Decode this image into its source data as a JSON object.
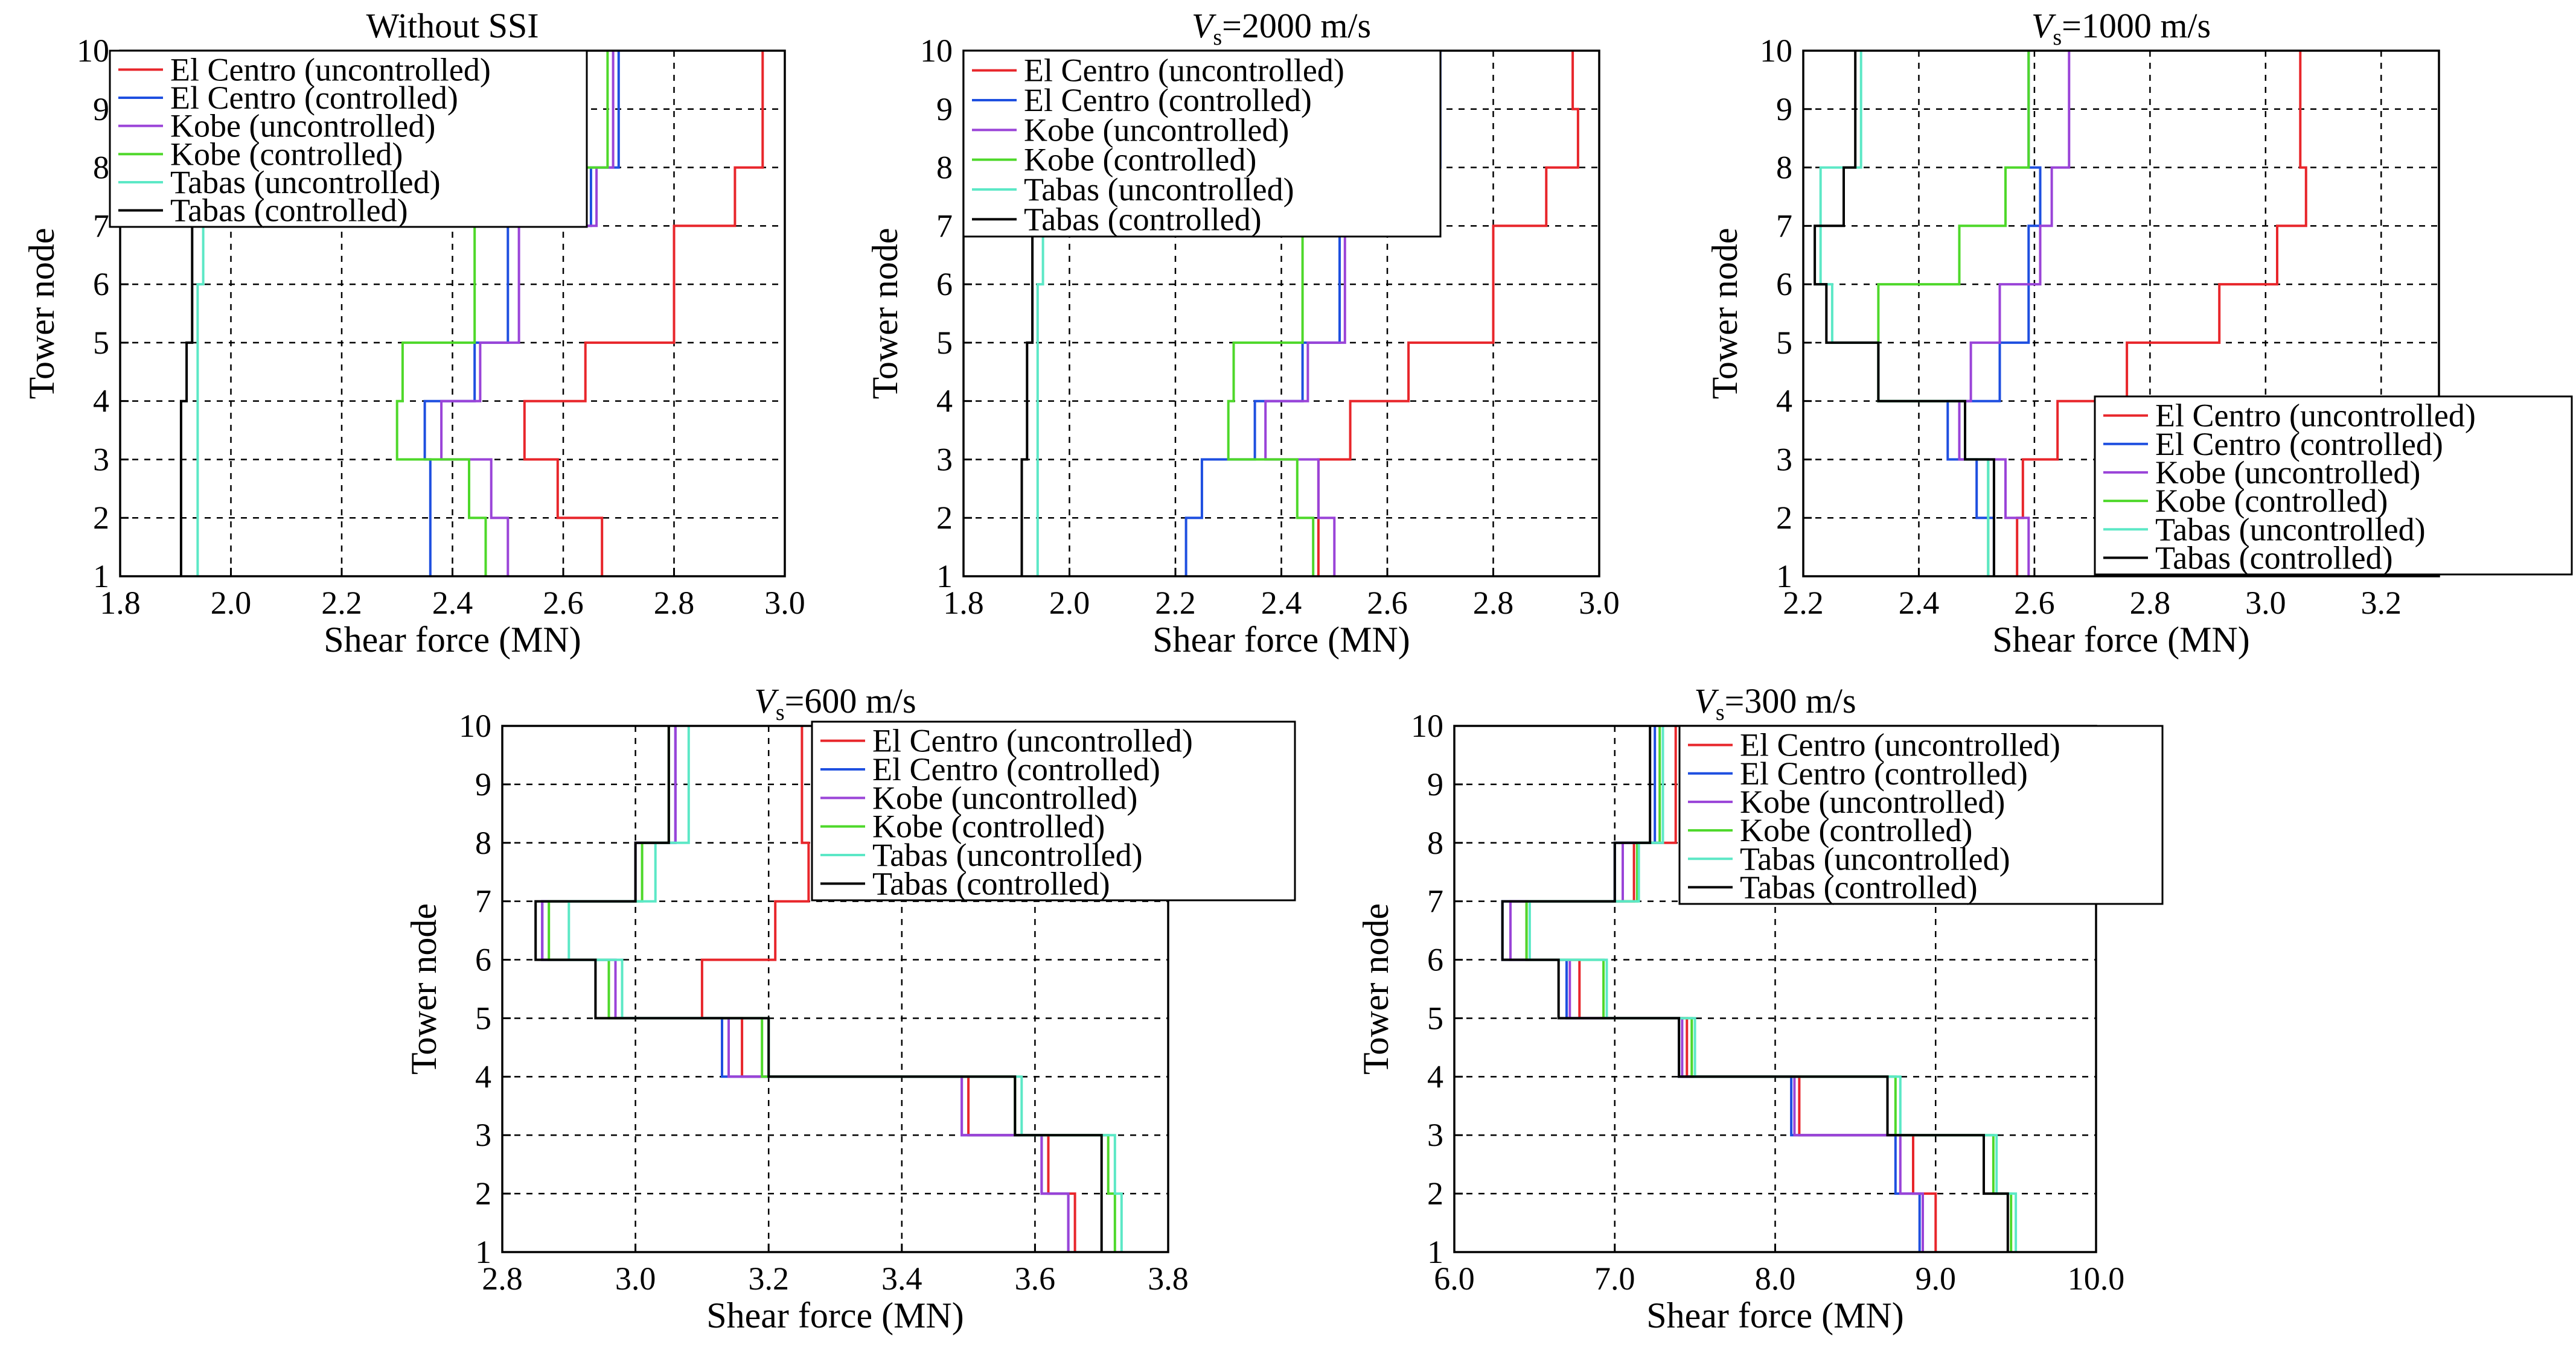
{
  "figure": {
    "series_names": [
      "El Centro (uncontrolled)",
      "El Centro (controlled)",
      "Kobe (uncontrolled)",
      "Kobe (controlled)",
      "Tabas (uncontrolled)",
      "Tabas (controlled)"
    ],
    "series_colors": [
      "#e8262b",
      "#1e4fe0",
      "#9a44d8",
      "#4ed82a",
      "#5ce8c6",
      "#000000"
    ]
  },
  "chart_data": [
    {
      "type": "line",
      "title": "Without SSI",
      "xlabel": "Shear force (MN)",
      "ylabel": "Tower node",
      "xlim": [
        1.8,
        3.0
      ],
      "ylim": [
        1,
        10
      ],
      "xticks": [
        "1.8",
        "2.0",
        "2.2",
        "2.4",
        "2.6",
        "2.8",
        "3.0"
      ],
      "yticks": [
        "1",
        "2",
        "3",
        "4",
        "5",
        "6",
        "7",
        "8",
        "9",
        "10"
      ],
      "grid": true,
      "legend": "top-left",
      "series": [
        {
          "name": "El Centro (uncontrolled)",
          "values": [
            2.67,
            2.59,
            2.53,
            2.64,
            2.8,
            2.8,
            2.91,
            2.96,
            2.96
          ]
        },
        {
          "name": "El Centro (controlled)",
          "values": [
            2.36,
            2.36,
            2.35,
            2.44,
            2.5,
            2.5,
            2.65,
            2.7,
            2.7
          ]
        },
        {
          "name": "Kobe (uncontrolled)",
          "values": [
            2.5,
            2.47,
            2.38,
            2.45,
            2.52,
            2.52,
            2.66,
            2.69,
            2.69
          ]
        },
        {
          "name": "Kobe (controlled)",
          "values": [
            2.46,
            2.43,
            2.3,
            2.31,
            2.44,
            2.44,
            2.62,
            2.68,
            2.68
          ]
        },
        {
          "name": "Tabas (uncontrolled)",
          "values": [
            1.94,
            1.94,
            1.94,
            1.94,
            1.94,
            1.95,
            1.95,
            1.96,
            1.96
          ]
        },
        {
          "name": "Tabas (controlled)",
          "values": [
            1.91,
            1.91,
            1.91,
            1.92,
            1.93,
            1.93,
            1.95,
            1.96,
            1.96
          ]
        }
      ]
    },
    {
      "type": "line",
      "title": "Vs=2000 m/s",
      "xlabel": "Shear force (MN)",
      "ylabel": "Tower node",
      "xlim": [
        1.8,
        3.0
      ],
      "ylim": [
        1,
        10
      ],
      "xticks": [
        "1.8",
        "2.0",
        "2.2",
        "2.4",
        "2.6",
        "2.8",
        "3.0"
      ],
      "yticks": [
        "1",
        "2",
        "3",
        "4",
        "5",
        "6",
        "7",
        "8",
        "9",
        "10"
      ],
      "grid": true,
      "legend": "top-left",
      "series": [
        {
          "name": "El Centro (uncontrolled)",
          "values": [
            2.47,
            2.47,
            2.53,
            2.64,
            2.8,
            2.8,
            2.9,
            2.96,
            2.95
          ]
        },
        {
          "name": "El Centro (controlled)",
          "values": [
            2.22,
            2.25,
            2.35,
            2.44,
            2.51,
            2.51,
            2.65,
            2.7,
            2.7
          ]
        },
        {
          "name": "Kobe (uncontrolled)",
          "values": [
            2.5,
            2.47,
            2.37,
            2.45,
            2.52,
            2.52,
            2.66,
            2.69,
            2.69
          ]
        },
        {
          "name": "Kobe (controlled)",
          "values": [
            2.46,
            2.43,
            2.3,
            2.31,
            2.44,
            2.44,
            2.62,
            2.68,
            2.68
          ]
        },
        {
          "name": "Tabas (uncontrolled)",
          "values": [
            1.94,
            1.94,
            1.94,
            1.94,
            1.94,
            1.95,
            1.95,
            1.96,
            1.96
          ]
        },
        {
          "name": "Tabas (controlled)",
          "values": [
            1.91,
            1.91,
            1.92,
            1.92,
            1.93,
            1.93,
            1.95,
            1.96,
            1.96
          ]
        }
      ]
    },
    {
      "type": "line",
      "title": "Vs=1000 m/s",
      "xlabel": "Shear force (MN)",
      "ylabel": "Tower node",
      "xlim": [
        2.2,
        3.3
      ],
      "ylim": [
        1,
        10
      ],
      "xticks": [
        "2.2",
        "2.4",
        "2.6",
        "2.8",
        "3.0",
        "3.2"
      ],
      "yticks": [
        "1",
        "2",
        "3",
        "4",
        "5",
        "6",
        "7",
        "8",
        "9",
        "10"
      ],
      "grid": true,
      "legend": "bottom-right",
      "series": [
        {
          "name": "El Centro (uncontrolled)",
          "values": [
            2.57,
            2.58,
            2.64,
            2.76,
            2.92,
            3.02,
            3.07,
            3.06,
            3.06
          ]
        },
        {
          "name": "El Centro (controlled)",
          "values": [
            2.53,
            2.5,
            2.45,
            2.54,
            2.59,
            2.59,
            2.61,
            2.59,
            2.59
          ]
        },
        {
          "name": "Kobe (uncontrolled)",
          "values": [
            2.59,
            2.55,
            2.47,
            2.49,
            2.54,
            2.61,
            2.63,
            2.66,
            2.66
          ]
        },
        {
          "name": "Kobe (controlled)",
          "values": [
            2.52,
            2.52,
            2.48,
            2.33,
            2.33,
            2.47,
            2.55,
            2.59,
            2.59
          ]
        },
        {
          "name": "Tabas (uncontrolled)",
          "values": [
            2.52,
            2.52,
            2.48,
            2.33,
            2.25,
            2.23,
            2.23,
            2.3,
            2.3
          ]
        },
        {
          "name": "Tabas (controlled)",
          "values": [
            2.53,
            2.53,
            2.48,
            2.33,
            2.24,
            2.22,
            2.27,
            2.29,
            2.29
          ]
        }
      ]
    },
    {
      "type": "line",
      "title": "Vs=600 m/s",
      "xlabel": "Shear force (MN)",
      "ylabel": "Tower node",
      "xlim": [
        2.8,
        3.8
      ],
      "ylim": [
        1,
        10
      ],
      "xticks": [
        "2.8",
        "3.0",
        "3.2",
        "3.4",
        "3.6",
        "3.8"
      ],
      "yticks": [
        "1",
        "2",
        "3",
        "4",
        "5",
        "6",
        "7",
        "8",
        "9",
        "10"
      ],
      "grid": true,
      "legend": "top-right",
      "series": [
        {
          "name": "El Centro (uncontrolled)",
          "values": [
            3.66,
            3.62,
            3.5,
            3.16,
            3.1,
            3.21,
            3.26,
            3.25,
            3.25
          ]
        },
        {
          "name": "El Centro (controlled)",
          "values": [
            3.65,
            3.61,
            3.49,
            3.13,
            2.97,
            2.86,
            3.0,
            3.06,
            3.06
          ]
        },
        {
          "name": "Kobe (uncontrolled)",
          "values": [
            3.65,
            3.61,
            3.49,
            3.14,
            2.97,
            2.86,
            3.0,
            3.06,
            3.06
          ]
        },
        {
          "name": "Kobe (controlled)",
          "values": [
            3.72,
            3.71,
            3.57,
            3.19,
            2.96,
            2.87,
            3.01,
            3.05,
            3.05
          ]
        },
        {
          "name": "Tabas (uncontrolled)",
          "values": [
            3.73,
            3.72,
            3.58,
            3.2,
            2.98,
            2.9,
            3.03,
            3.08,
            3.08
          ]
        },
        {
          "name": "Tabas (controlled)",
          "values": [
            3.7,
            3.7,
            3.57,
            3.2,
            2.94,
            2.85,
            3.0,
            3.05,
            3.05
          ]
        }
      ]
    },
    {
      "type": "line",
      "title": "Vs=300 m/s",
      "xlabel": "Shear force (MN)",
      "ylabel": "Tower node",
      "xlim": [
        6.0,
        10.0
      ],
      "ylim": [
        1,
        10
      ],
      "xticks": [
        "6.0",
        "7.0",
        "8.0",
        "9.0",
        "10.0"
      ],
      "yticks": [
        "1",
        "2",
        "3",
        "4",
        "5",
        "6",
        "7",
        "8",
        "9",
        "10"
      ],
      "grid": true,
      "legend": "top-right",
      "series": [
        {
          "name": "El Centro (uncontrolled)",
          "values": [
            9.0,
            8.86,
            8.15,
            7.45,
            6.78,
            6.45,
            7.12,
            7.38,
            7.38
          ]
        },
        {
          "name": "El Centro (controlled)",
          "values": [
            8.9,
            8.75,
            8.1,
            7.4,
            6.7,
            6.3,
            7.0,
            7.25,
            7.25
          ]
        },
        {
          "name": "Kobe (uncontrolled)",
          "values": [
            8.92,
            8.78,
            8.12,
            7.42,
            6.72,
            6.35,
            7.05,
            7.3,
            7.3
          ]
        },
        {
          "name": "Kobe (controlled)",
          "values": [
            9.47,
            9.36,
            8.75,
            7.48,
            6.93,
            6.45,
            7.14,
            7.28,
            7.28
          ]
        },
        {
          "name": "Tabas (uncontrolled)",
          "values": [
            9.5,
            9.38,
            8.78,
            7.5,
            6.95,
            6.47,
            7.15,
            7.3,
            7.3
          ]
        },
        {
          "name": "Tabas (controlled)",
          "values": [
            9.45,
            9.3,
            8.7,
            7.4,
            6.65,
            6.3,
            7.0,
            7.22,
            7.22
          ]
        }
      ]
    }
  ]
}
